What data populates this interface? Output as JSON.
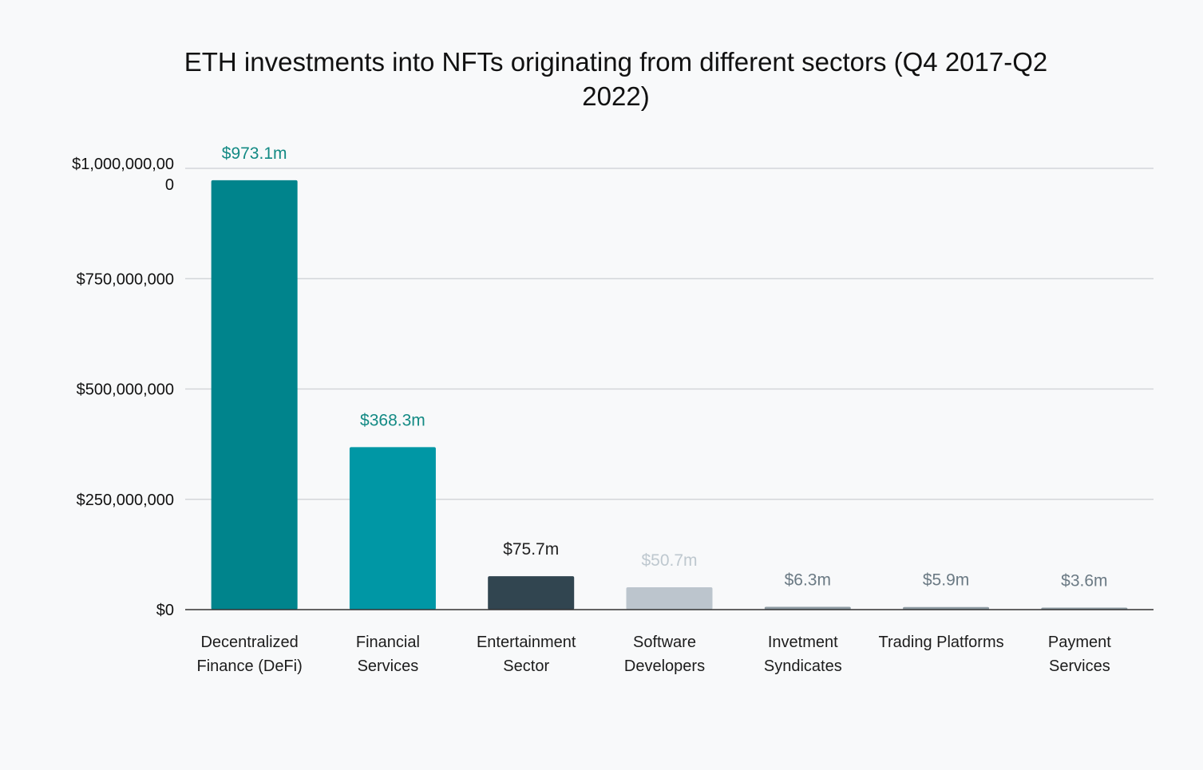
{
  "chart_data": {
    "type": "bar",
    "title": "ETH investments into NFTs originating from different sectors (Q4 2017-Q2 2022)",
    "xlabel": "",
    "ylabel": "",
    "categories": [
      [
        "Decentralized",
        "Finance (DeFi)"
      ],
      [
        "Financial",
        "Services"
      ],
      [
        "Entertainment",
        "Sector"
      ],
      [
        "Software",
        "Developers"
      ],
      [
        "Invetment",
        "Syndicates"
      ],
      [
        "Trading Platforms"
      ],
      [
        "Payment",
        "Services"
      ]
    ],
    "values": [
      973100000,
      368300000,
      75700000,
      50700000,
      6300000,
      5900000,
      3600000
    ],
    "data_labels": [
      "$973.1m",
      "$368.3m",
      "$75.7m",
      "$50.7m",
      "$6.3m",
      "$5.9m",
      "$3.6m"
    ],
    "bar_colors": [
      "#00848c",
      "#0097a5",
      "#314550",
      "#bcc5cd",
      "#8d9ba3",
      "#8d9ba3",
      "#8d9ba3"
    ],
    "label_colors": [
      "#138a84",
      "#138a84",
      "#222222",
      "#bec8cf",
      "#6b7a84",
      "#6b7a84",
      "#6b7a84"
    ],
    "ylim": [
      0,
      1000000000
    ],
    "yticks": [
      {
        "value": 0,
        "lines": [
          "$0"
        ]
      },
      {
        "value": 250000000,
        "lines": [
          "$250,000,000"
        ]
      },
      {
        "value": 500000000,
        "lines": [
          "$500,000,000"
        ]
      },
      {
        "value": 750000000,
        "lines": [
          "$750,000,000"
        ]
      },
      {
        "value": 1000000000,
        "lines": [
          "$1,000,000,00",
          "0"
        ]
      }
    ],
    "grid": true,
    "legend": "none"
  }
}
